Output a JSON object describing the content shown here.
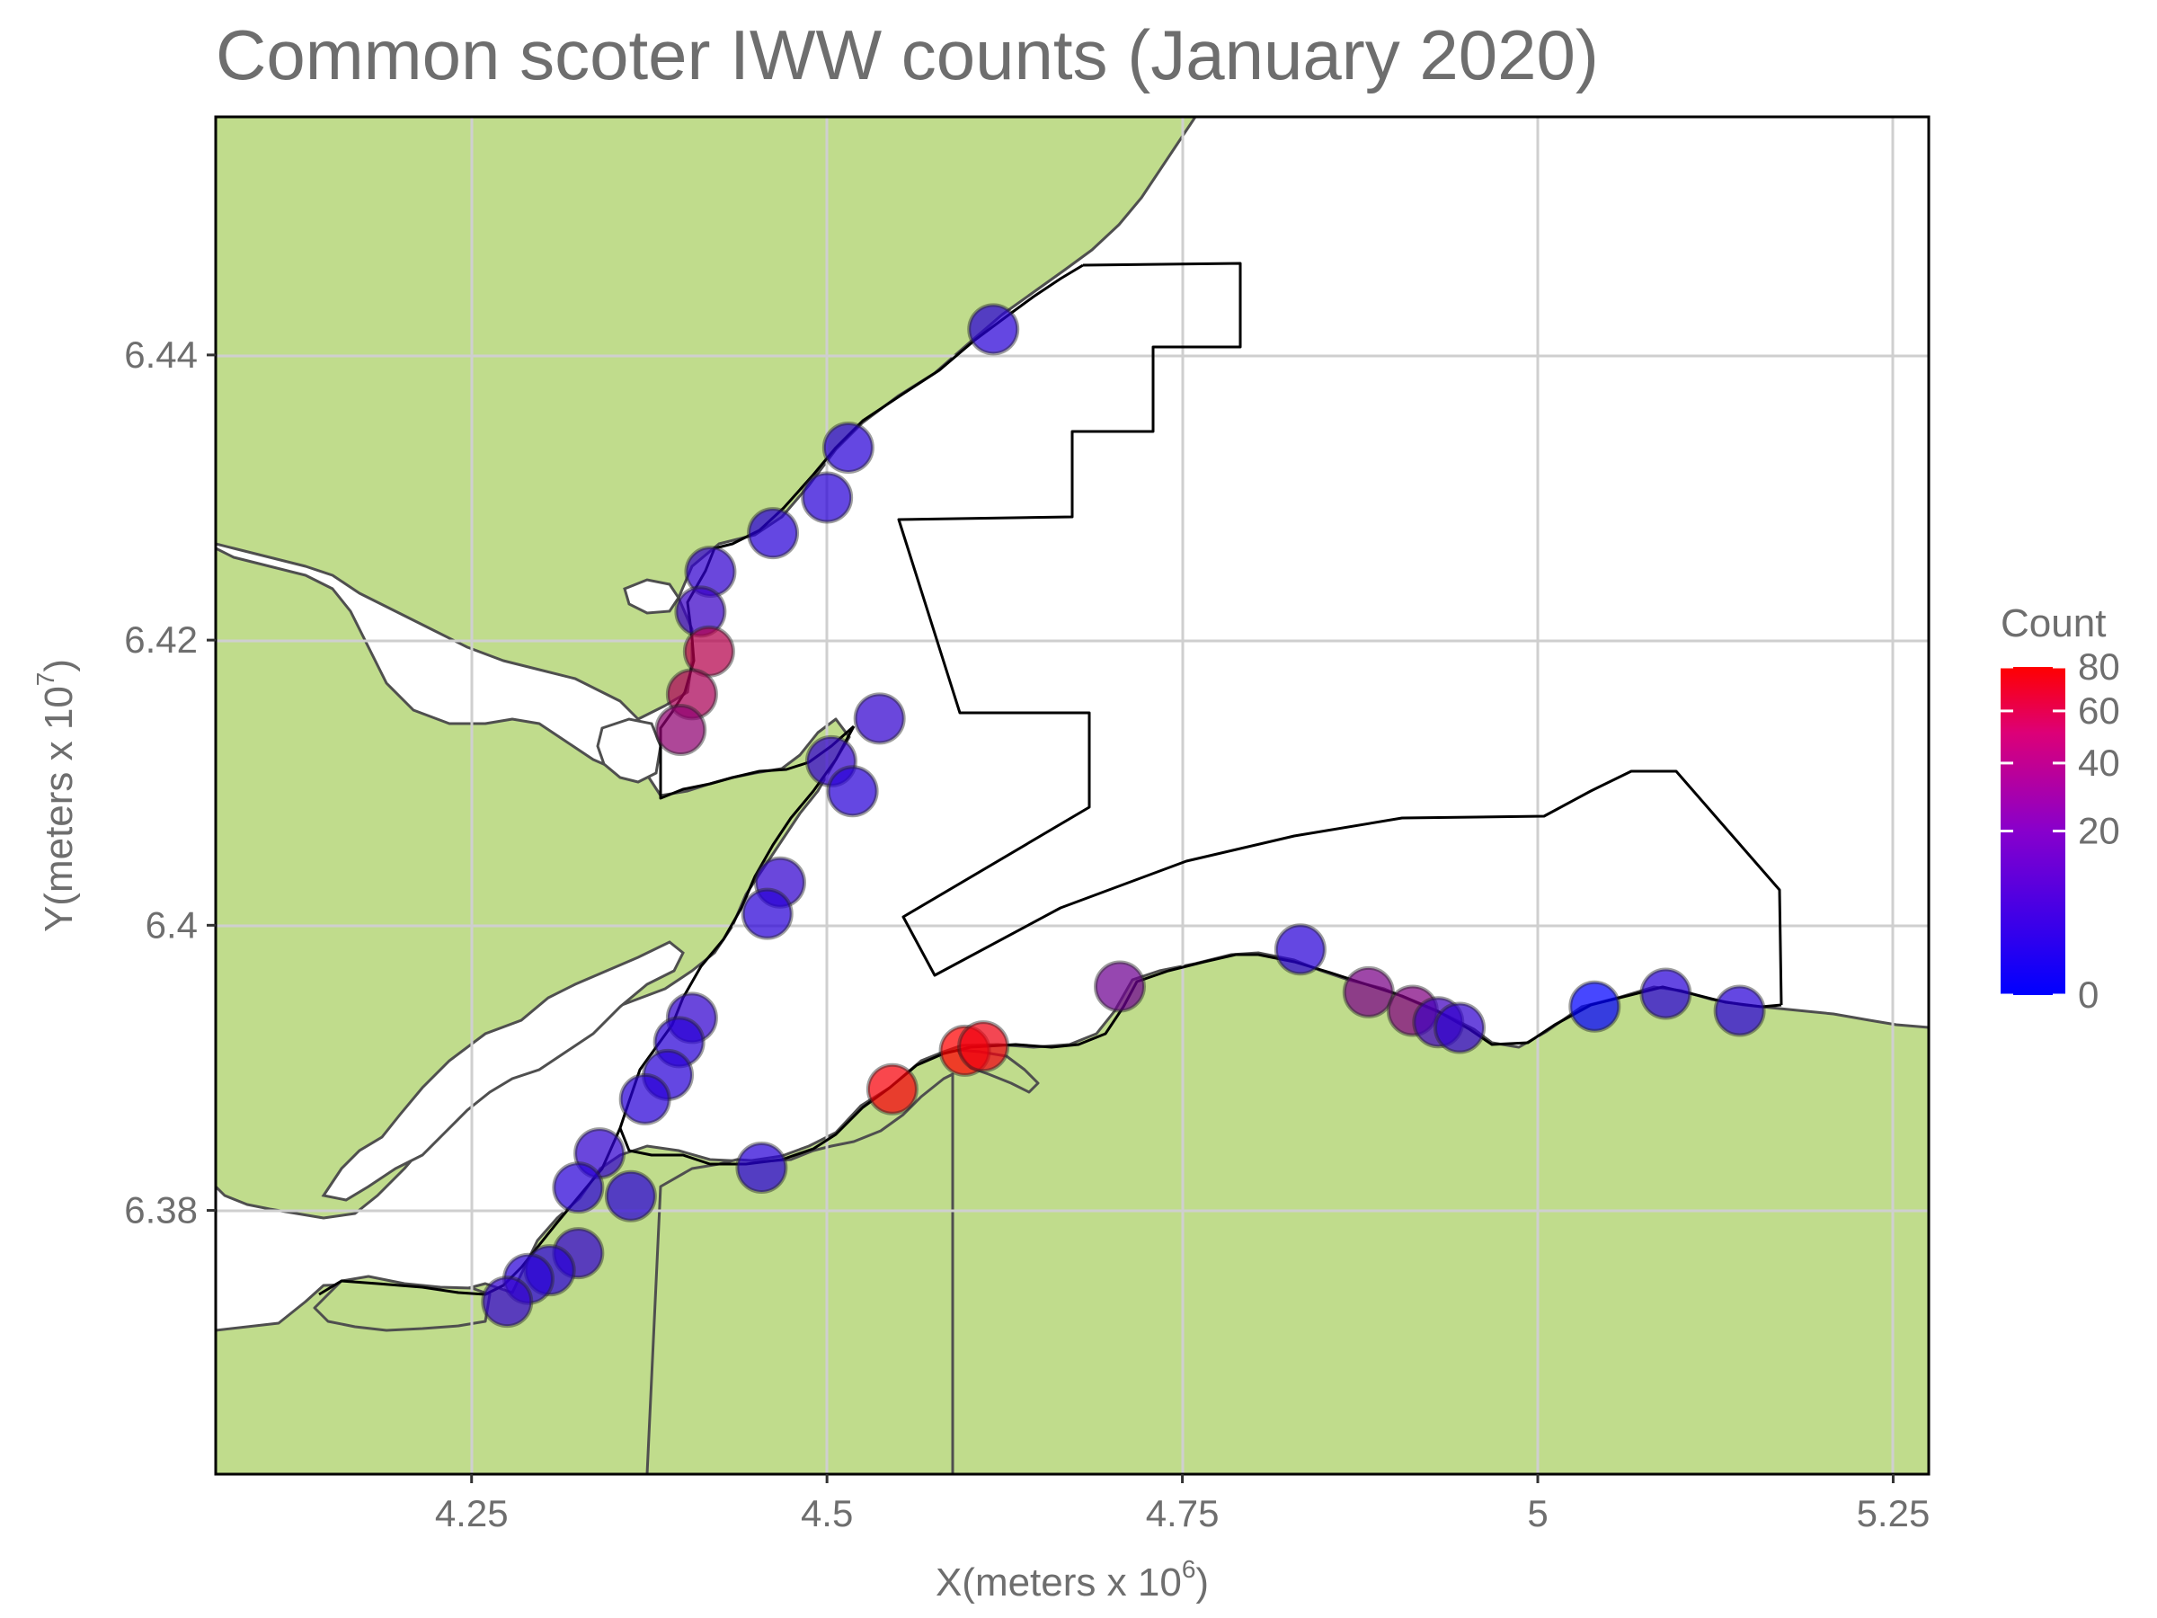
{
  "title": "Common scoter IWW counts (January 2020)",
  "x_axis": {
    "label_main": "X(meters x 10",
    "label_exp": "6",
    "label_tail": ")",
    "ticks": [
      {
        "value": 4.25,
        "label": "4.25"
      },
      {
        "value": 4.5,
        "label": "4.5"
      },
      {
        "value": 4.75,
        "label": "4.75"
      },
      {
        "value": 5.0,
        "label": "5"
      },
      {
        "value": 5.25,
        "label": "5.25"
      }
    ],
    "range": [
      4.07,
      5.275
    ]
  },
  "y_axis": {
    "label_main": "Y(meters x 10",
    "label_exp": "7",
    "label_tail": ")",
    "ticks": [
      {
        "value": 6.38,
        "label": "6.38"
      },
      {
        "value": 6.4,
        "label": "6.4"
      },
      {
        "value": 6.42,
        "label": "6.42"
      },
      {
        "value": 6.44,
        "label": "6.44"
      }
    ],
    "range": [
      6.3615,
      6.4567
    ]
  },
  "legend": {
    "title": "Count",
    "position": "right",
    "ticks": [
      {
        "value": 0,
        "label": "0"
      },
      {
        "value": 20,
        "label": "20"
      },
      {
        "value": 40,
        "label": "40"
      },
      {
        "value": 60,
        "label": "60"
      },
      {
        "value": 80,
        "label": "80"
      }
    ],
    "color_low": "#0000ff",
    "color_high": "#ff0000",
    "scale": "sqrt"
  },
  "colors": {
    "land": "#c0dc8c",
    "coastline": "#4f4f4f",
    "boundary": "#000000",
    "grid": "#cfcfcf",
    "text": "#6e6e6e"
  },
  "chart_data": {
    "type": "scatter",
    "grid": true,
    "points": [
      {
        "x": 4.617,
        "y": 6.4418,
        "count": 2
      },
      {
        "x": 4.515,
        "y": 6.4335,
        "count": 2
      },
      {
        "x": 4.5,
        "y": 6.43,
        "count": 2
      },
      {
        "x": 4.462,
        "y": 6.4275,
        "count": 2
      },
      {
        "x": 4.418,
        "y": 6.4248,
        "count": 3
      },
      {
        "x": 4.411,
        "y": 6.422,
        "count": 4
      },
      {
        "x": 4.417,
        "y": 6.4192,
        "count": 40
      },
      {
        "x": 4.405,
        "y": 6.4162,
        "count": 35
      },
      {
        "x": 4.397,
        "y": 6.4137,
        "count": 25
      },
      {
        "x": 4.537,
        "y": 6.4145,
        "count": 3
      },
      {
        "x": 4.503,
        "y": 6.4115,
        "count": 3
      },
      {
        "x": 4.518,
        "y": 6.4094,
        "count": 2
      },
      {
        "x": 4.467,
        "y": 6.403,
        "count": 3
      },
      {
        "x": 4.458,
        "y": 6.4008,
        "count": 2
      },
      {
        "x": 4.405,
        "y": 6.3935,
        "count": 3
      },
      {
        "x": 4.396,
        "y": 6.3918,
        "count": 2
      },
      {
        "x": 4.388,
        "y": 6.3895,
        "count": 2
      },
      {
        "x": 4.372,
        "y": 6.3878,
        "count": 2
      },
      {
        "x": 4.34,
        "y": 6.384,
        "count": 3
      },
      {
        "x": 4.325,
        "y": 6.3816,
        "count": 2
      },
      {
        "x": 4.362,
        "y": 6.381,
        "count": 2
      },
      {
        "x": 4.325,
        "y": 6.377,
        "count": 3
      },
      {
        "x": 4.305,
        "y": 6.3758,
        "count": 2
      },
      {
        "x": 4.29,
        "y": 6.3752,
        "count": 2
      },
      {
        "x": 4.275,
        "y": 6.3736,
        "count": 3
      },
      {
        "x": 4.454,
        "y": 6.383,
        "count": 2
      },
      {
        "x": 4.546,
        "y": 6.3885,
        "count": 75
      },
      {
        "x": 4.597,
        "y": 6.3912,
        "count": 80
      },
      {
        "x": 4.61,
        "y": 6.3915,
        "count": 70
      },
      {
        "x": 4.706,
        "y": 6.3957,
        "count": 15
      },
      {
        "x": 4.833,
        "y": 6.3983,
        "count": 2
      },
      {
        "x": 4.881,
        "y": 6.3953,
        "count": 18
      },
      {
        "x": 4.912,
        "y": 6.394,
        "count": 20
      },
      {
        "x": 4.93,
        "y": 6.3932,
        "count": 5
      },
      {
        "x": 4.945,
        "y": 6.3928,
        "count": 3
      },
      {
        "x": 5.04,
        "y": 6.3943,
        "count": 0
      },
      {
        "x": 5.09,
        "y": 6.3952,
        "count": 2
      },
      {
        "x": 5.142,
        "y": 6.394,
        "count": 2
      }
    ]
  }
}
